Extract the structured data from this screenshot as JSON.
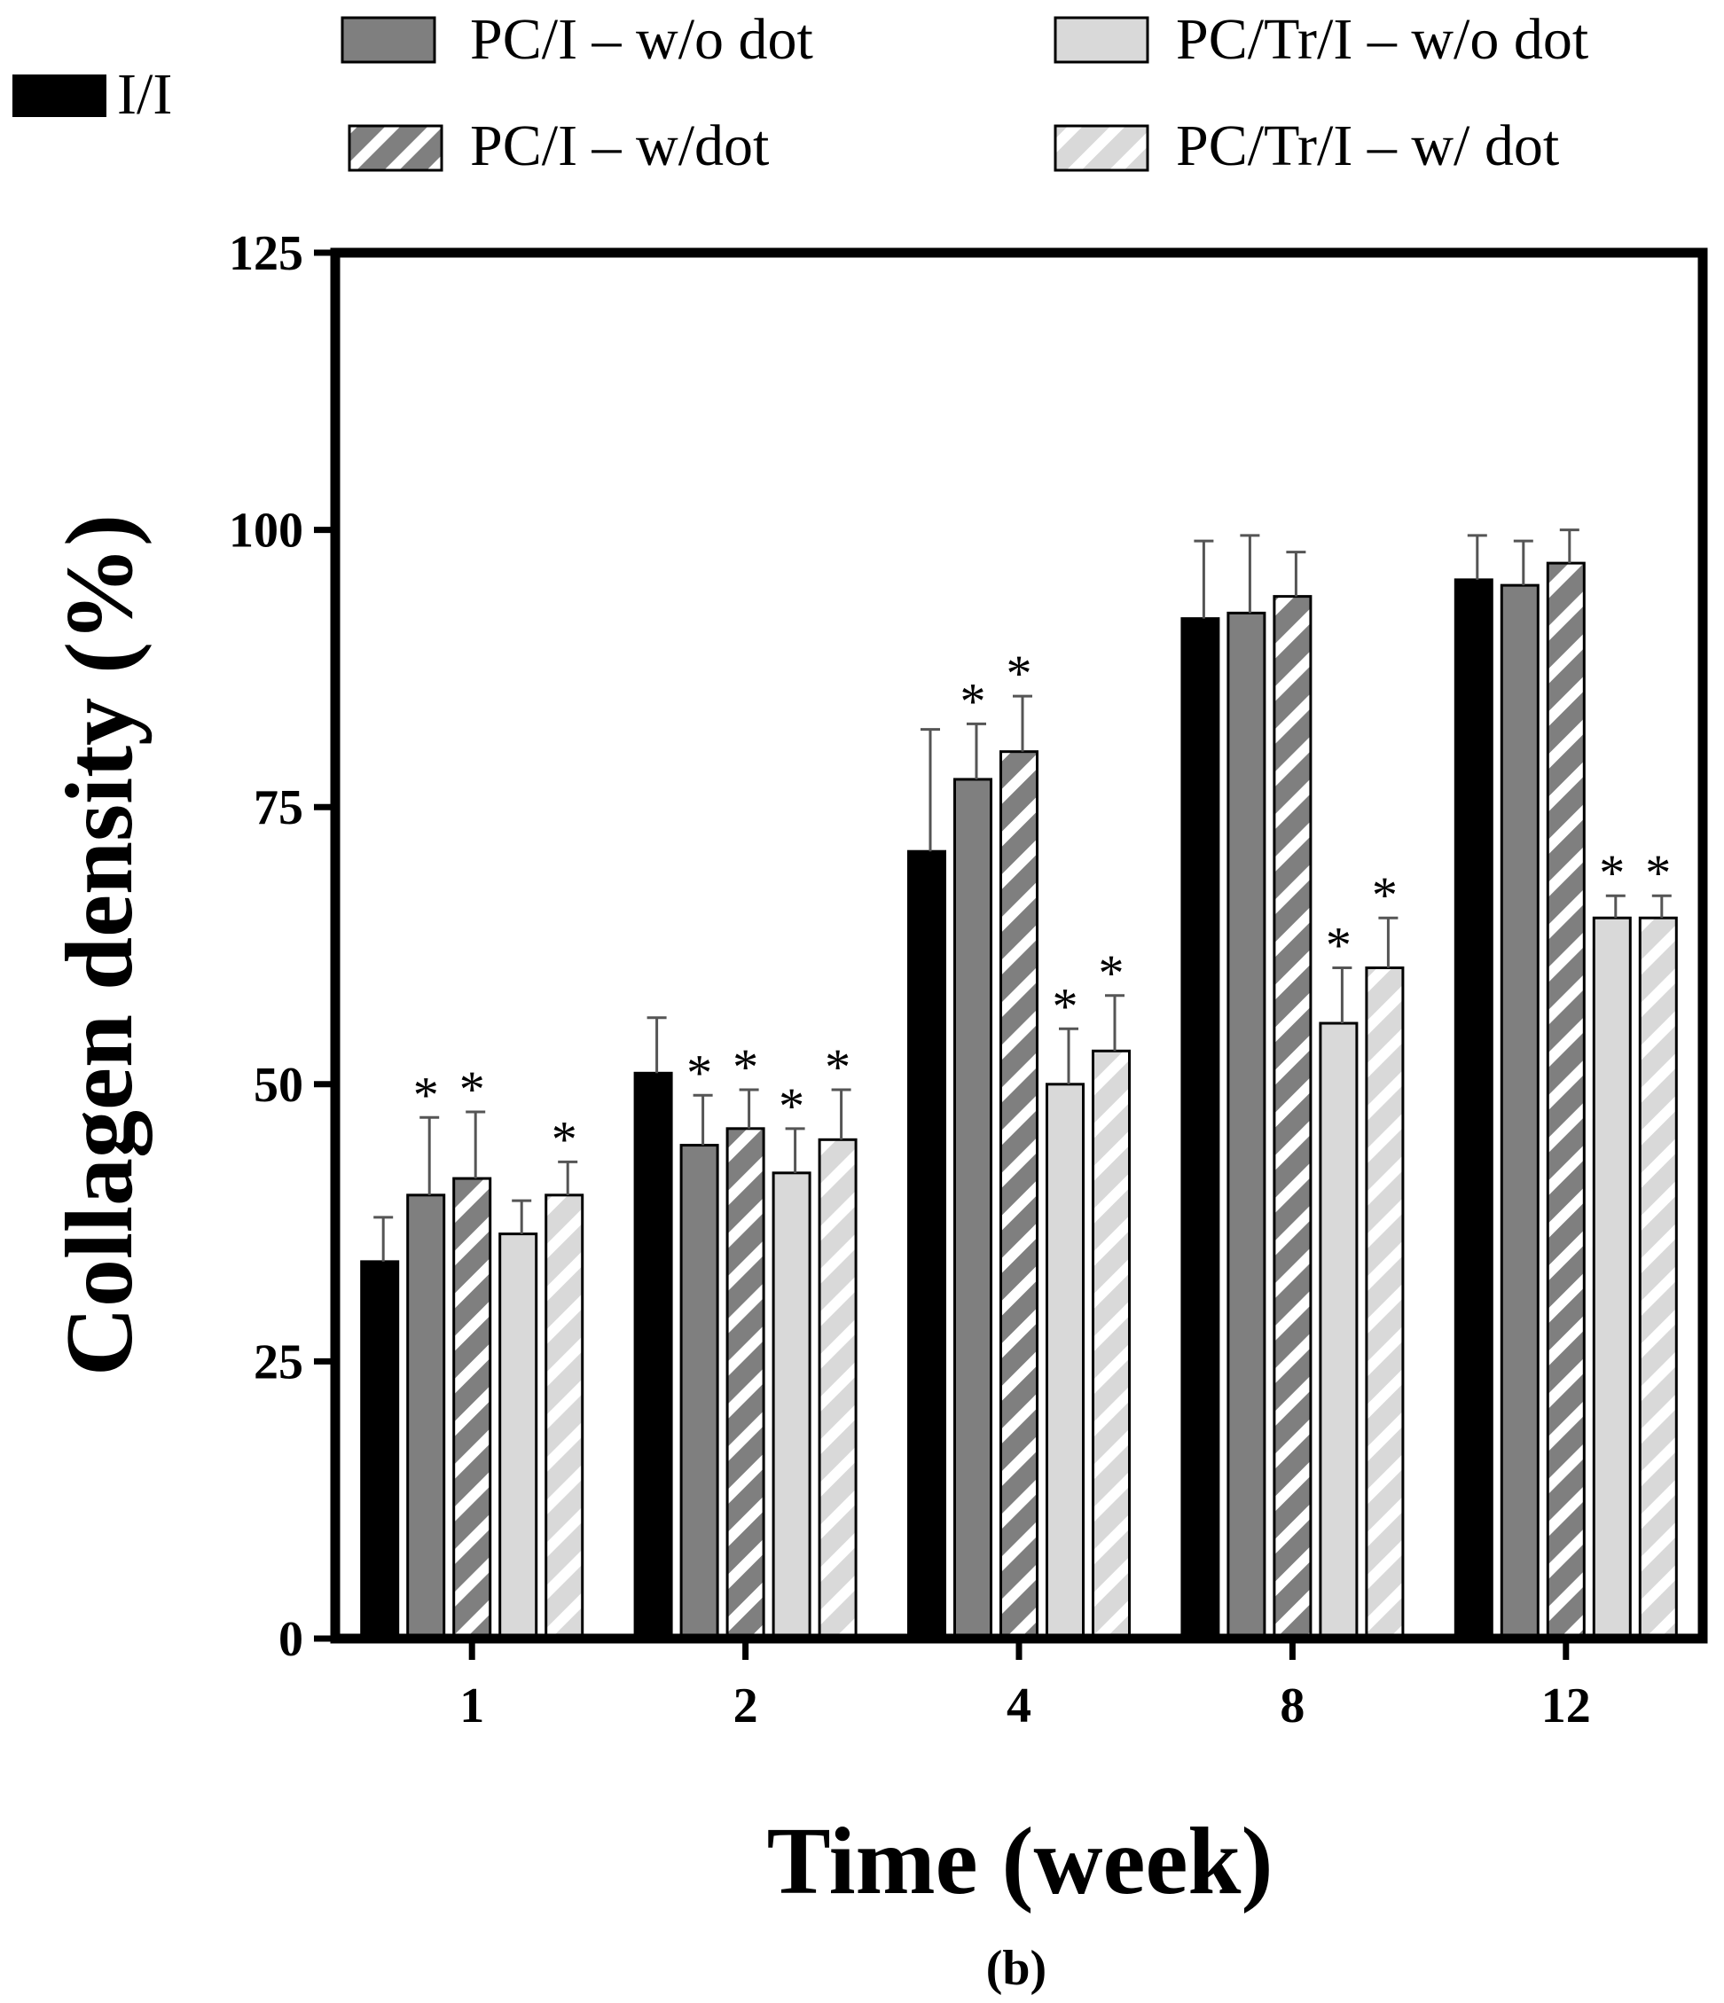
{
  "chart_data": {
    "type": "bar",
    "title": "",
    "caption": "(b)",
    "xlabel": "Time (week)",
    "ylabel": "Collagen density (%)",
    "ylim": [
      0,
      125
    ],
    "yticks": [
      0,
      25,
      50,
      75,
      100,
      125
    ],
    "categories": [
      "1",
      "2",
      "4",
      "8",
      "12"
    ],
    "significance_marker": "*",
    "series": [
      {
        "name": "I/I",
        "color": "#000000",
        "pattern": "solid",
        "values": [
          34,
          51,
          71,
          92,
          95.5
        ],
        "errors": [
          4,
          5,
          11,
          7,
          4
        ],
        "significant": [
          false,
          false,
          false,
          false,
          false
        ]
      },
      {
        "name": "PC/I – w/o dot",
        "color": "#7f7f7f",
        "pattern": "solid",
        "values": [
          40,
          44.5,
          77.5,
          92.5,
          95
        ],
        "errors": [
          7,
          4.5,
          5,
          7,
          4
        ],
        "significant": [
          true,
          true,
          true,
          false,
          false
        ]
      },
      {
        "name": "PC/I – w/dot",
        "color": "#7f7f7f",
        "pattern": "hatched",
        "values": [
          41.5,
          46,
          80,
          94,
          97
        ],
        "errors": [
          6,
          3.5,
          5,
          4,
          3
        ],
        "significant": [
          true,
          true,
          true,
          false,
          false
        ]
      },
      {
        "name": "PC/Tr/I – w/o dot",
        "color": "#d9d9d9",
        "pattern": "solid",
        "values": [
          36.5,
          42,
          50,
          55.5,
          65
        ],
        "errors": [
          3,
          4,
          5,
          5,
          2
        ],
        "significant": [
          false,
          true,
          true,
          true,
          true
        ]
      },
      {
        "name": "PC/Tr/I – w/ dot",
        "color": "#d9d9d9",
        "pattern": "hatched",
        "values": [
          40,
          45,
          53,
          60.5,
          65
        ],
        "errors": [
          3,
          4.5,
          5,
          4.5,
          2
        ],
        "significant": [
          true,
          true,
          true,
          true,
          true
        ]
      }
    ]
  }
}
